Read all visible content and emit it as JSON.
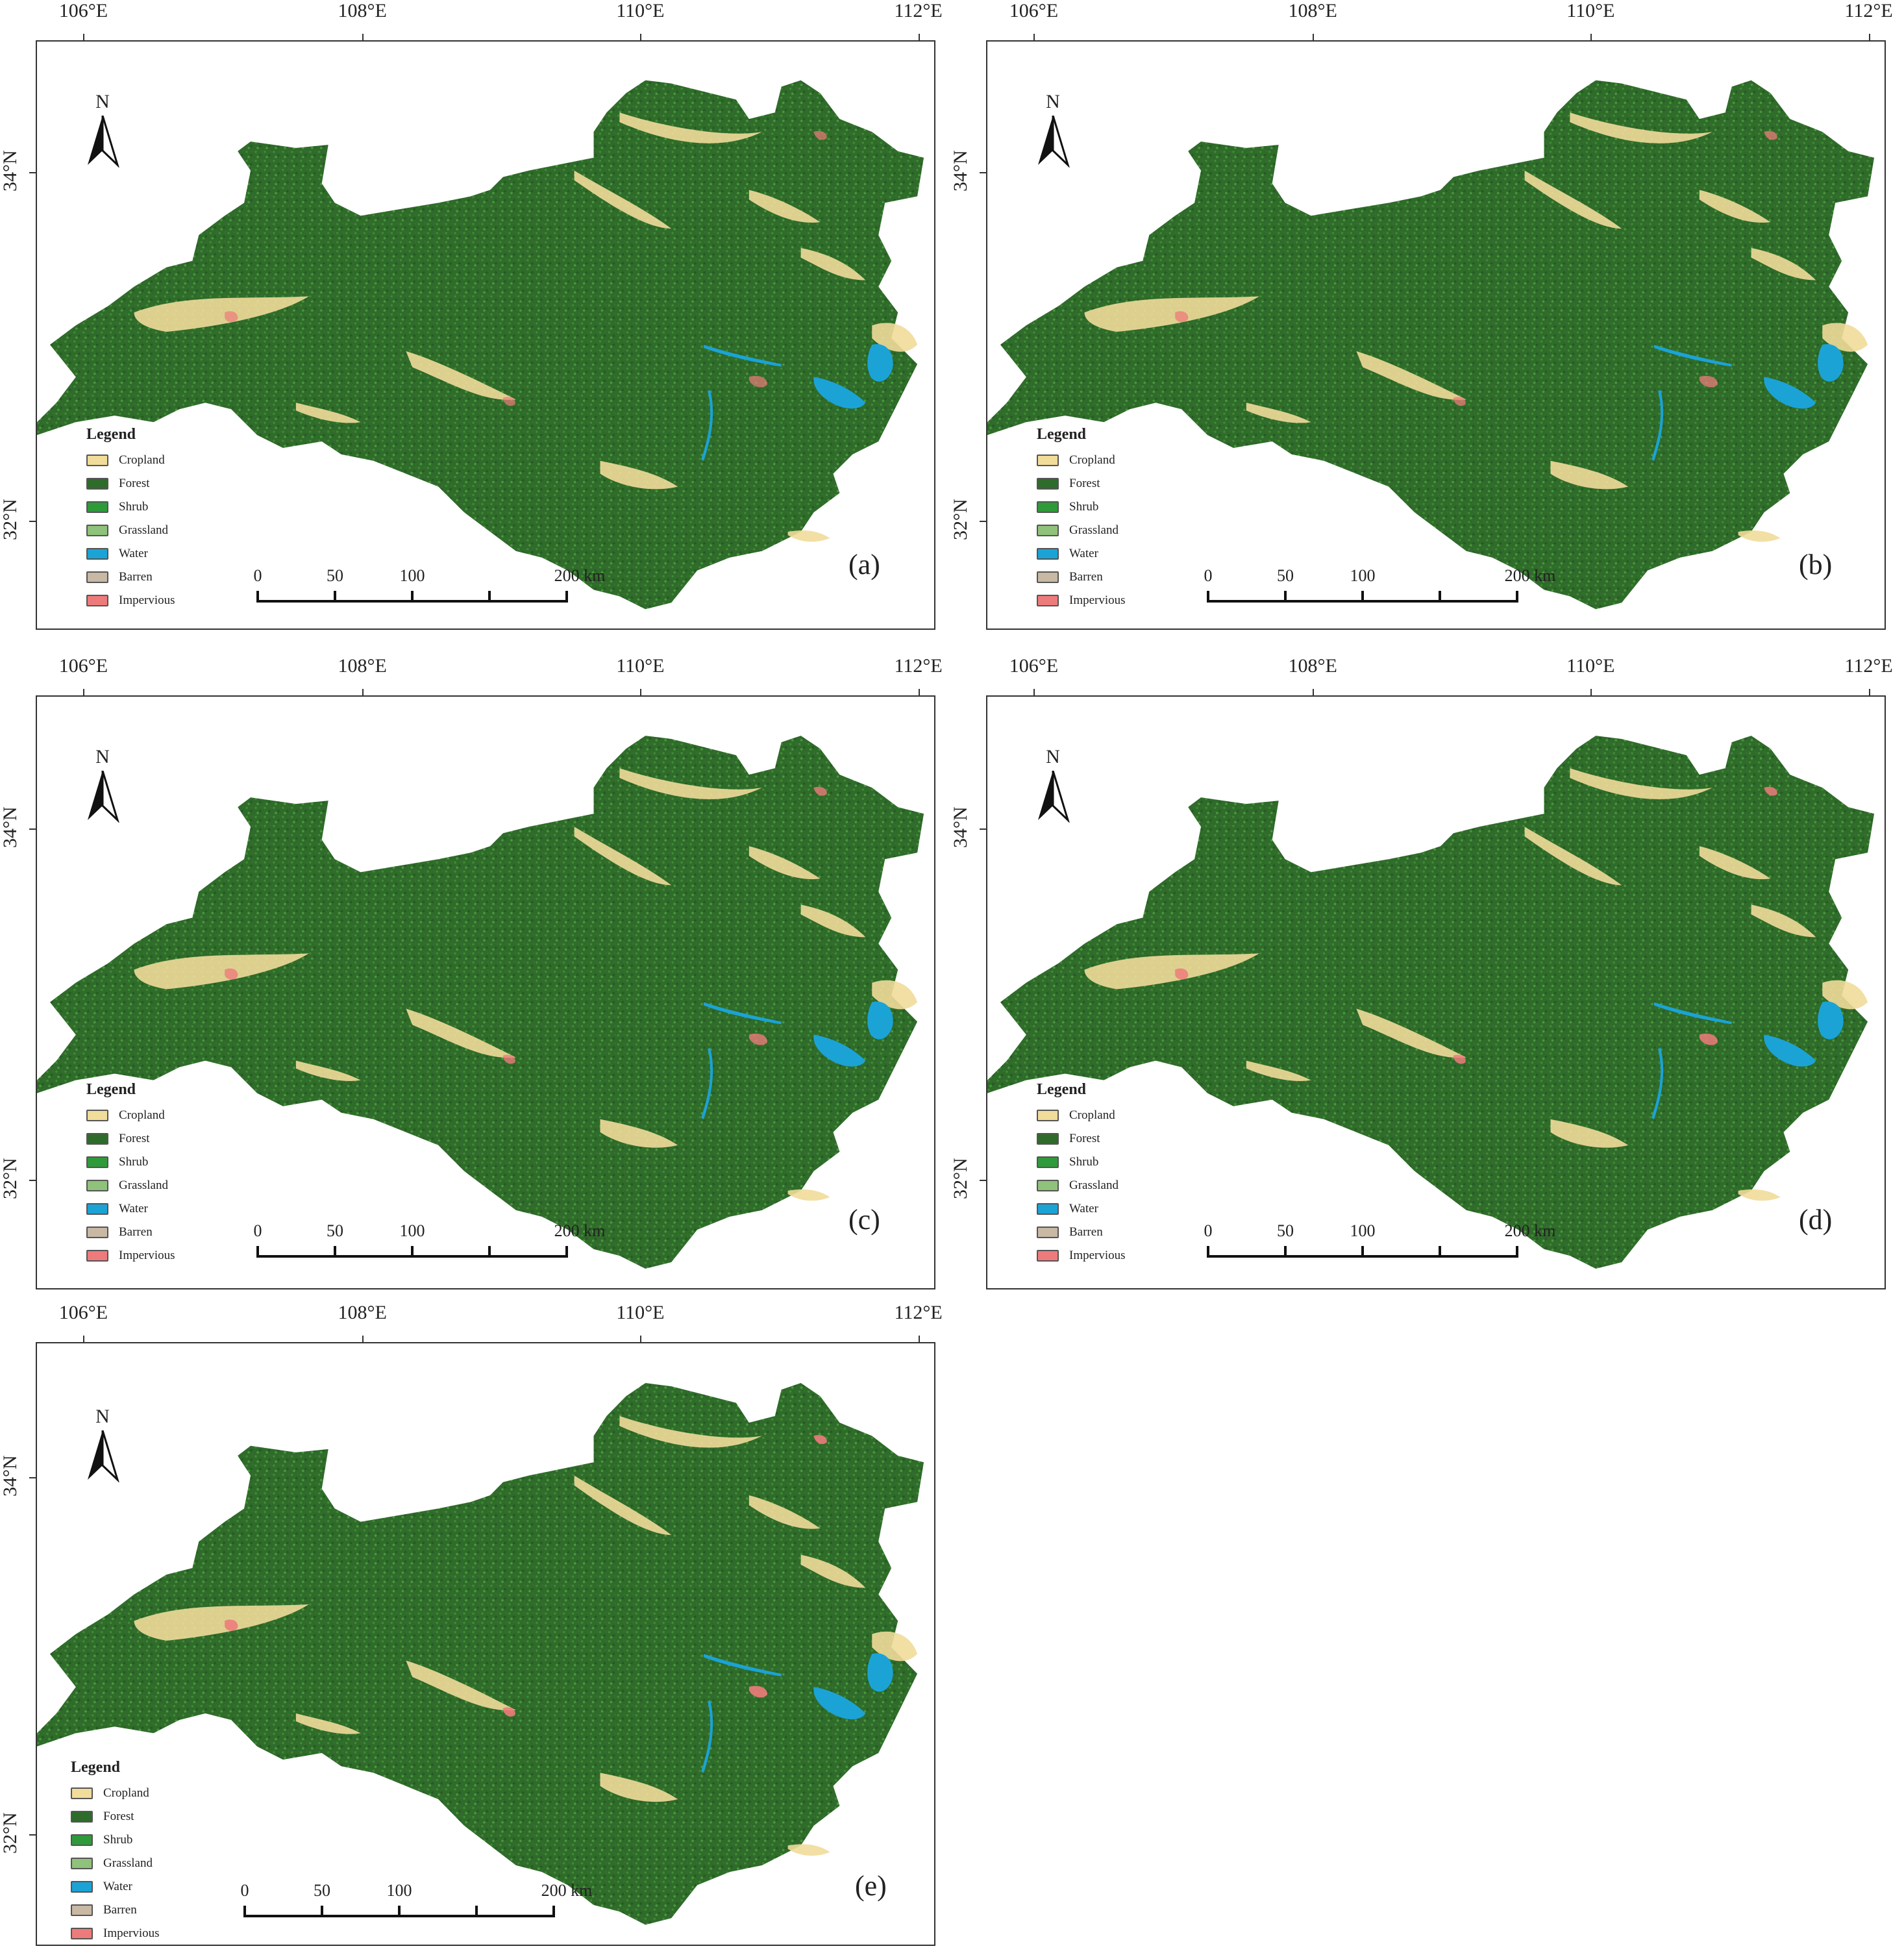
{
  "panels": [
    {
      "id": "a",
      "label": "(a)"
    },
    {
      "id": "b",
      "label": "(b)"
    },
    {
      "id": "c",
      "label": "(c)"
    },
    {
      "id": "d",
      "label": "(d)"
    },
    {
      "id": "e",
      "label": "(e)"
    }
  ],
  "longitude_ticks": [
    "106°E",
    "108°E",
    "110°E",
    "112°E"
  ],
  "latitude_ticks": [
    "34°N",
    "32°N"
  ],
  "north_arrow": {
    "label": "N",
    "icon": "north-arrow-icon"
  },
  "legend": {
    "title": "Legend",
    "items": [
      {
        "label": "Cropland",
        "color": "#f1dc9a"
      },
      {
        "label": "Forest",
        "color": "#2f6b2a"
      },
      {
        "label": "Shrub",
        "color": "#2f9a3a"
      },
      {
        "label": "Grassland",
        "color": "#8fc27a"
      },
      {
        "label": "Water",
        "color": "#1ba3d6"
      },
      {
        "label": "Barren",
        "color": "#c8b8a4"
      },
      {
        "label": "Impervious",
        "color": "#ee7b7b"
      }
    ]
  },
  "scale_bar": {
    "labels": [
      "0",
      "50",
      "100",
      "200 km"
    ],
    "values_km": [
      0,
      50,
      100,
      200
    ]
  },
  "colors": {
    "forest": "#2f6b2a",
    "cropland": "#f1dc9a",
    "water": "#1ba3d6",
    "impervious": "#ee7b7b"
  }
}
